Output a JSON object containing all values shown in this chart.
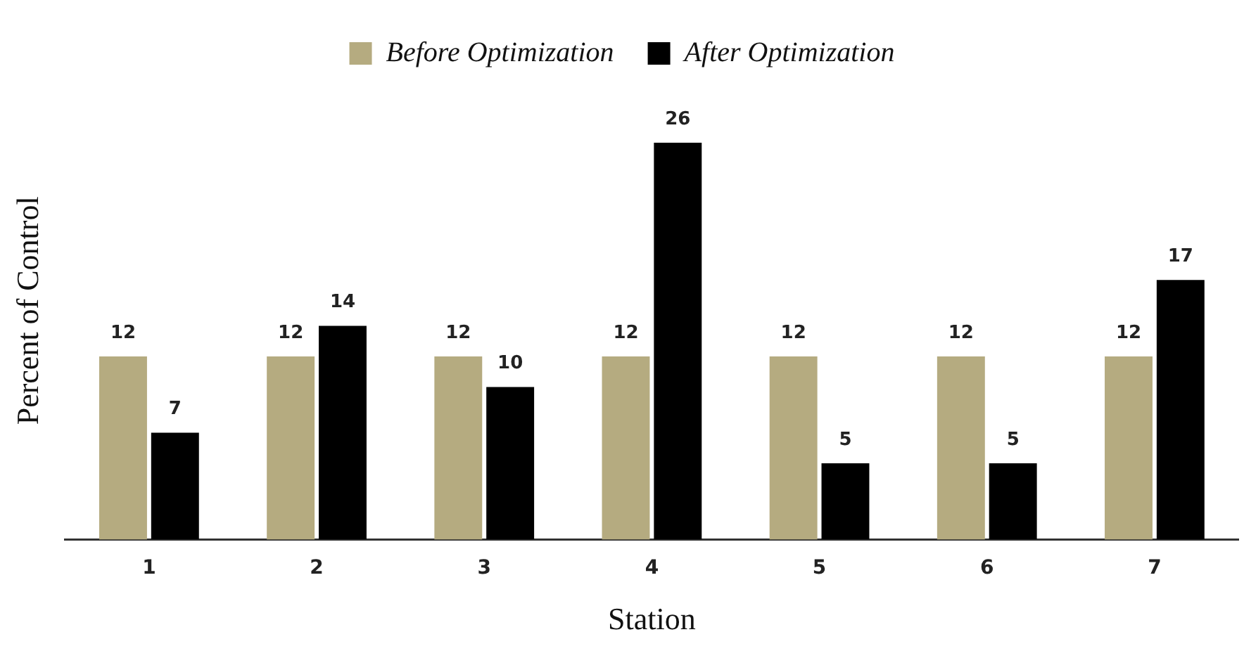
{
  "chart_data": {
    "type": "bar",
    "xlabel": "Station",
    "ylabel": "Percent of Control",
    "categories": [
      "1",
      "2",
      "3",
      "4",
      "5",
      "6",
      "7"
    ],
    "series": [
      {
        "name": "Before Optimization",
        "color": "#b5ab80",
        "values": [
          12,
          12,
          12,
          12,
          12,
          12,
          12
        ]
      },
      {
        "name": "After Optimization",
        "color": "#000000",
        "values": [
          7,
          14,
          10,
          26,
          5,
          5,
          17
        ]
      }
    ],
    "data_labels": true,
    "legend": "top",
    "grid": false
  }
}
